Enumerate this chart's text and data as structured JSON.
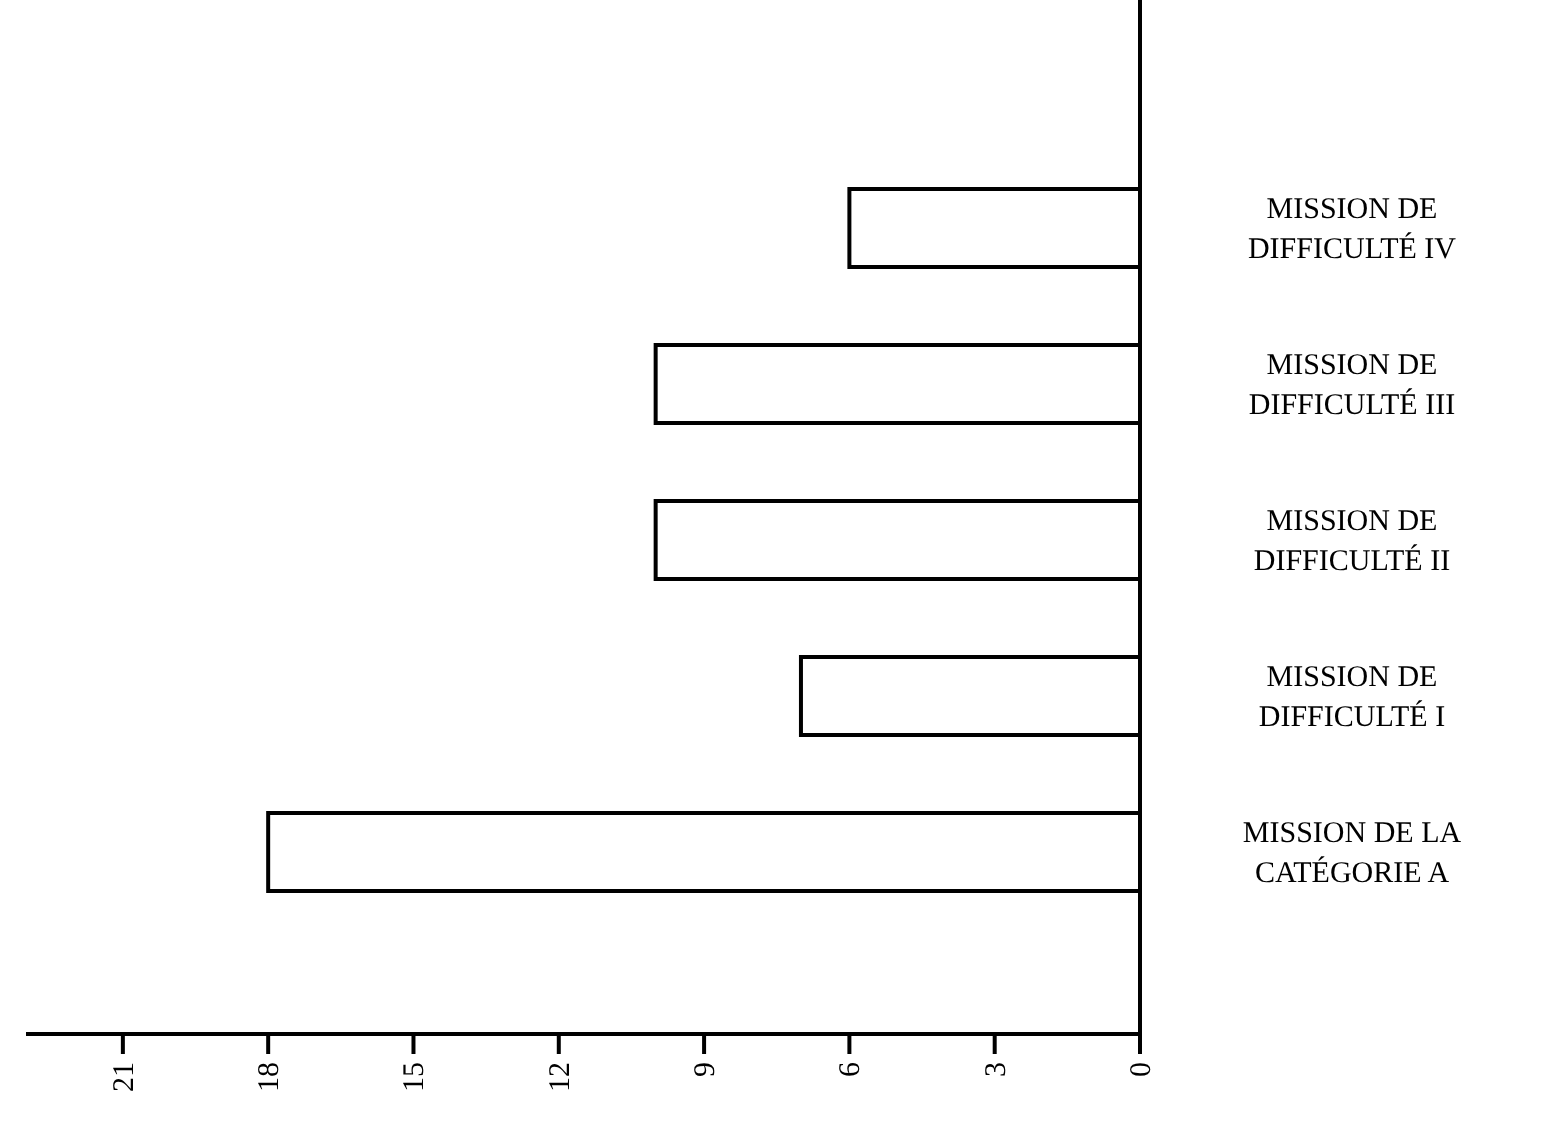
{
  "chart_data": {
    "type": "bar",
    "orientation": "horizontal",
    "categories": [
      "MISSION DE DIFFICULTÉ IV",
      "MISSION DE DIFFICULTÉ III",
      "MISSION DE DIFFICULTÉ II",
      "MISSION DE DIFFICULTÉ I",
      "MISSION DE LA CATÉGORIE A"
    ],
    "values": [
      6,
      10,
      10,
      7,
      18
    ],
    "color": "#ffffff",
    "xlim": [
      23,
      0
    ],
    "xticks": [
      0,
      3,
      6,
      9,
      12,
      15,
      18,
      21
    ],
    "grid": false
  }
}
